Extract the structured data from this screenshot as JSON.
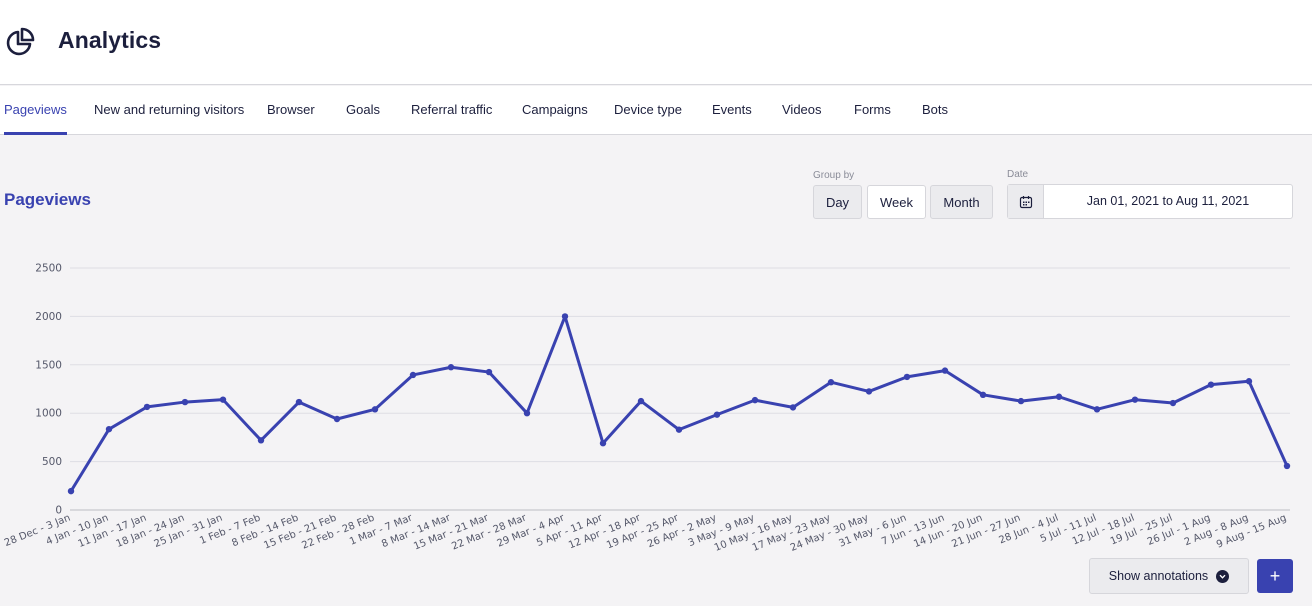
{
  "header": {
    "title": "Analytics",
    "icon": "pie-chart-icon"
  },
  "tabs": [
    {
      "label": "Pageviews",
      "active": true
    },
    {
      "label": "New and returning visitors"
    },
    {
      "label": "Browser"
    },
    {
      "label": "Goals"
    },
    {
      "label": "Referral traffic"
    },
    {
      "label": "Campaigns"
    },
    {
      "label": "Device type"
    },
    {
      "label": "Events"
    },
    {
      "label": "Videos"
    },
    {
      "label": "Forms"
    },
    {
      "label": "Bots"
    }
  ],
  "section": {
    "title": "Pageviews"
  },
  "group_by": {
    "label": "Group by",
    "options": [
      "Day",
      "Week",
      "Month"
    ],
    "selected": "Week"
  },
  "date": {
    "label": "Date",
    "value": "Jan 01, 2021 to Aug 11, 2021",
    "icon": "calendar-icon"
  },
  "annotations": {
    "label": "Show annotations",
    "icon": "chevron-down-icon"
  },
  "add": {
    "label": "+"
  },
  "colors": {
    "accent": "#3942b0",
    "text": "#1c1f3d"
  },
  "chart_data": {
    "type": "line",
    "title": "",
    "xlabel": "",
    "ylabel": "",
    "ylim": [
      0,
      2500
    ],
    "yticks": [
      0,
      500,
      1000,
      1500,
      2000,
      2500
    ],
    "grid": true,
    "categories": [
      "28 Dec - 3 Jan",
      "4 Jan - 10 Jan",
      "11 Jan - 17 Jan",
      "18 Jan - 24 Jan",
      "25 Jan - 31 Jan",
      "1 Feb - 7 Feb",
      "8 Feb - 14 Feb",
      "15 Feb - 21 Feb",
      "22 Feb - 28 Feb",
      "1 Mar - 7 Mar",
      "8 Mar - 14 Mar",
      "15 Mar - 21 Mar",
      "22 Mar - 28 Mar",
      "29 Mar - 4 Apr",
      "5 Apr - 11 Apr",
      "12 Apr - 18 Apr",
      "19 Apr - 25 Apr",
      "26 Apr - 2 May",
      "3 May - 9 May",
      "10 May - 16 May",
      "17 May - 23 May",
      "24 May - 30 May",
      "31 May - 6 Jun",
      "7 Jun - 13 Jun",
      "14 Jun - 20 Jun",
      "21 Jun - 27 Jun",
      "28 Jun - 4 Jul",
      "5 Jul - 11 Jul",
      "12 Jul - 18 Jul",
      "19 Jul - 25 Jul",
      "26 Jul - 1 Aug",
      "2 Aug - 8 Aug",
      "9 Aug - 15 Aug"
    ],
    "series": [
      {
        "values": [
          195,
          835,
          1065,
          1115,
          1140,
          720,
          1115,
          940,
          1040,
          1395,
          1475,
          1425,
          1000,
          2000,
          690,
          1125,
          830,
          985,
          1135,
          1060,
          1320,
          1225,
          1375,
          1440,
          1190,
          1125,
          1170,
          1040,
          1140,
          1105,
          1295,
          1330,
          455
        ],
        "color": "#3942b0"
      }
    ]
  }
}
